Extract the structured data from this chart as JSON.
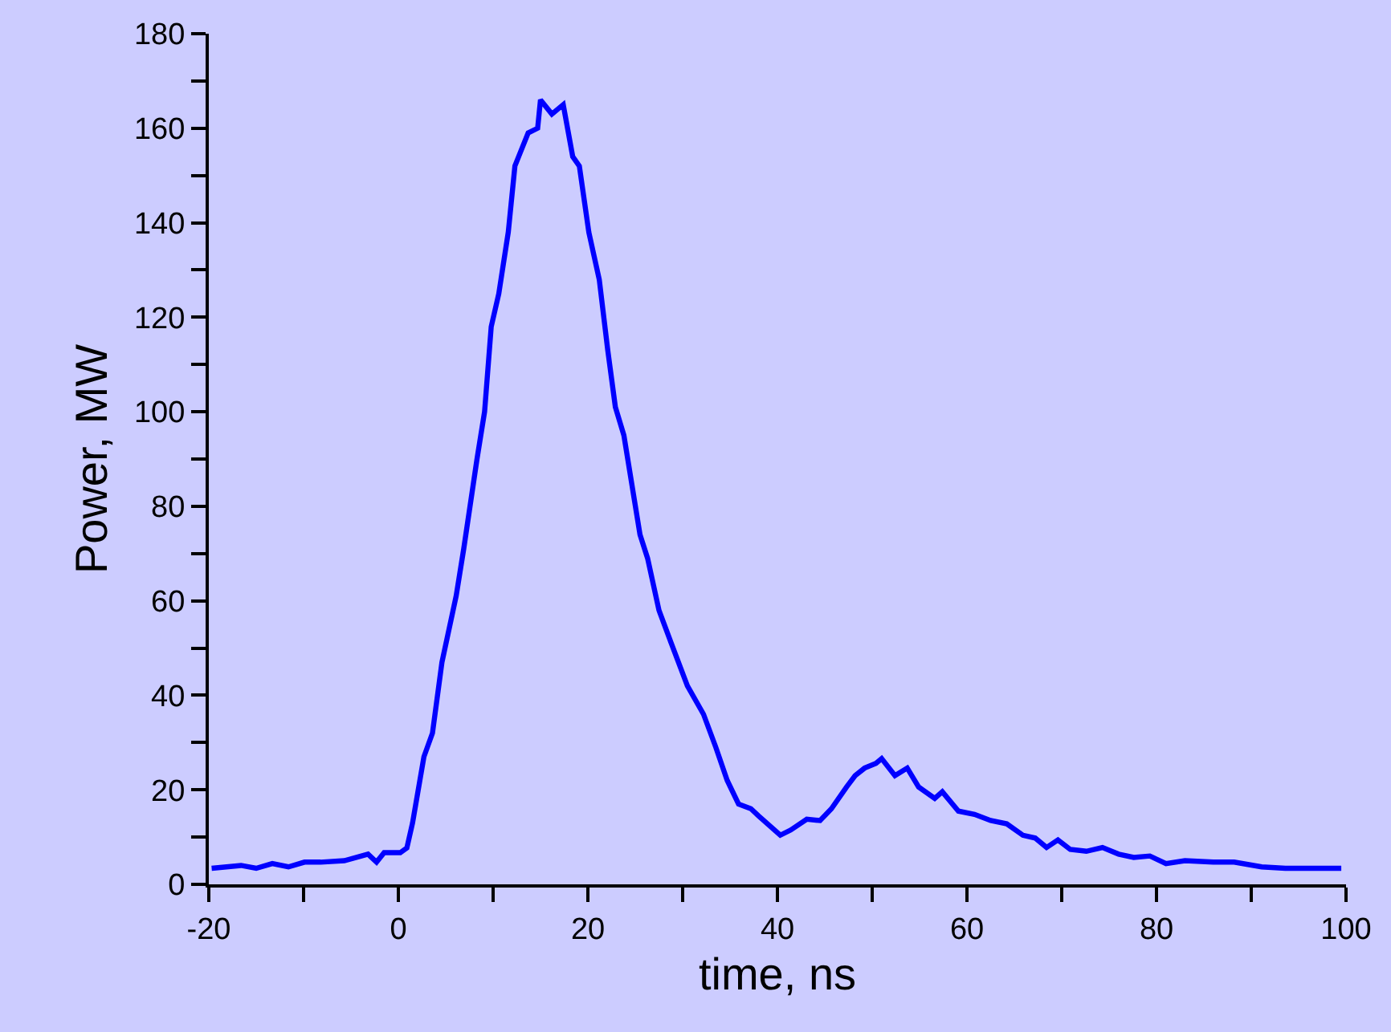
{
  "chart_data": {
    "type": "line",
    "xlabel": "time, ns",
    "ylabel": "Power, MW",
    "x": [
      -19.7,
      -16.6,
      -15,
      -13.3,
      -11.6,
      -9.9,
      -8.2,
      -5.7,
      -3.2,
      -2.3,
      -1.5,
      0.2,
      0.9,
      1.5,
      2.7,
      3.6,
      4.6,
      6.1,
      6.9,
      8.3,
      9.1,
      9.8,
      10.6,
      11.6,
      12.3,
      13.7,
      14.7,
      15,
      16.2,
      17.4,
      18.4,
      19.1,
      20.1,
      21.2,
      22.1,
      22.9,
      23.8,
      25.5,
      26.3,
      27.5,
      28.8,
      30.5,
      32.2,
      33.5,
      34.7,
      35.9,
      37.2,
      38,
      40.3,
      41.4,
      43.1,
      44.5,
      45.7,
      47.3,
      48.2,
      49.2,
      50.4,
      51,
      52.4,
      53.7,
      54.9,
      56.6,
      57.4,
      59.1,
      60.8,
      62.5,
      64.2,
      65.9,
      67.2,
      68.4,
      69.6,
      70.9,
      72.6,
      74.3,
      76,
      77.6,
      79.3,
      81,
      83,
      86,
      88.2,
      91.1,
      93.6,
      96.2,
      99.5
    ],
    "series": [
      {
        "color": "#0000ff",
        "values": [
          3.4,
          4,
          3.4,
          4.4,
          3.7,
          4.7,
          4.7,
          5,
          6.4,
          4.7,
          6.7,
          6.7,
          7.7,
          13,
          27,
          32,
          47,
          61,
          71,
          90,
          100,
          118,
          125,
          138,
          152,
          159,
          160,
          166,
          163,
          165,
          154,
          152,
          138,
          128,
          113,
          101,
          95,
          74,
          69,
          58,
          51,
          42,
          36,
          29,
          22,
          17,
          16,
          14.5,
          10.4,
          11.5,
          13.8,
          13.5,
          16,
          20.6,
          23,
          24.6,
          25.6,
          26.6,
          23,
          24.6,
          20.6,
          18.2,
          19.6,
          15.5,
          14.8,
          13.5,
          12.8,
          10.4,
          9.8,
          7.8,
          9.4,
          7.4,
          7,
          7.8,
          6.4,
          5.7,
          6,
          4.4,
          5,
          4.7,
          4.7,
          3.7,
          3.4,
          3.4,
          3.4
        ]
      }
    ],
    "xlim": [
      -20,
      100
    ],
    "xticks": [
      -20,
      {
        "value": -10,
        "label": null
      },
      0,
      {
        "value": 10,
        "label": null
      },
      20,
      {
        "value": 30,
        "label": null
      },
      40,
      {
        "value": 50,
        "label": null
      },
      60,
      {
        "value": 70,
        "label": null
      },
      80,
      {
        "value": 90,
        "label": null
      },
      100
    ],
    "ylim": [
      0,
      180
    ],
    "yticks": [
      0,
      {
        "value": 10,
        "label": null
      },
      20,
      {
        "value": 30,
        "label": null
      },
      40,
      {
        "value": 50,
        "label": null
      },
      60,
      {
        "value": 70,
        "label": null
      },
      80,
      {
        "value": 90,
        "label": null
      },
      100,
      {
        "value": 110,
        "label": null
      },
      120,
      {
        "value": 130,
        "label": null
      },
      140,
      {
        "value": 150,
        "label": null
      },
      160,
      {
        "value": 170,
        "label": null
      },
      180
    ],
    "grid": false,
    "marker": "none",
    "line_style": "solid"
  }
}
